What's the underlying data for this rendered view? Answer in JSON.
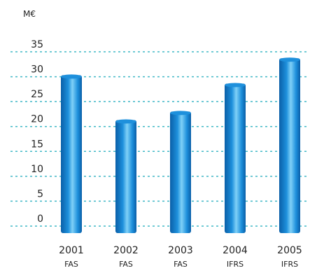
{
  "chart_data": {
    "type": "bar",
    "unit_label": "M€",
    "categories": [
      "2001",
      "2002",
      "2003",
      "2004",
      "2005"
    ],
    "category_sublabels": [
      "FAS",
      "FAS",
      "FAS",
      "IFRS",
      "IFRS"
    ],
    "values": [
      30.3,
      21.3,
      23.0,
      28.6,
      33.7
    ],
    "y_ticks": [
      0,
      5,
      10,
      15,
      20,
      25,
      30,
      35
    ],
    "ylim": [
      0,
      35
    ],
    "grid": true,
    "title": "",
    "xlabel": "",
    "ylabel": "",
    "colors": {
      "bar_dark": "#0a5fa8",
      "bar_mid": "#1e90dc",
      "bar_light": "#7fd0f7",
      "grid": "#41b8c6"
    }
  }
}
